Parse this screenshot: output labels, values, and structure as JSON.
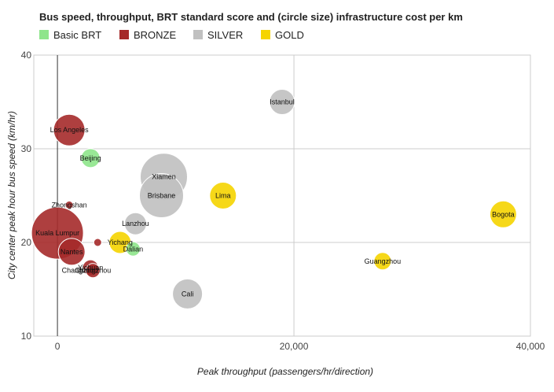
{
  "chart_data": {
    "type": "bubble",
    "title": "Bus speed, throughput, BRT standard score and (circle size) infrastructure cost per km",
    "xlabel": "Peak throughput (passengers/hr/direction)",
    "ylabel": "City center peak hour bus speed (km/hr)",
    "xlim": [
      -2000,
      40000
    ],
    "ylim": [
      10,
      40
    ],
    "x_ticks": [
      0,
      20000,
      40000
    ],
    "x_tick_labels": [
      "0",
      "20,000",
      "40,000"
    ],
    "y_ticks": [
      10,
      20,
      30,
      40
    ],
    "y_tick_labels": [
      "10",
      "20",
      "30",
      "40"
    ],
    "grid": true,
    "legend_position": "top-left",
    "categories": [
      {
        "name": "Basic BRT",
        "color": "#8ee58b"
      },
      {
        "name": "BRONZE",
        "color": "#a52a2a"
      },
      {
        "name": "SILVER",
        "color": "#c0c0c0"
      },
      {
        "name": "GOLD",
        "color": "#f5d400"
      }
    ],
    "points": [
      {
        "label": "Kuala Lumpur",
        "x": 0,
        "y": 21,
        "size": 33,
        "category": "BRONZE"
      },
      {
        "label": "Xiamen",
        "x": 9000,
        "y": 27,
        "size": 30,
        "category": "SILVER"
      },
      {
        "label": "Brisbane",
        "x": 8800,
        "y": 25,
        "size": 28,
        "category": "SILVER"
      },
      {
        "label": "Cali",
        "x": 11000,
        "y": 14.5,
        "size": 19,
        "category": "SILVER"
      },
      {
        "label": "Istanbul",
        "x": 19000,
        "y": 35,
        "size": 16,
        "category": "SILVER"
      },
      {
        "label": "Lanzhou",
        "x": 6600,
        "y": 22,
        "size": 14,
        "category": "SILVER"
      },
      {
        "label": "Changzhou",
        "x": 1900,
        "y": 17,
        "size": 5,
        "category": "SILVER"
      },
      {
        "label": "Los Angeles",
        "x": 1000,
        "y": 32,
        "size": 20,
        "category": "BRONZE"
      },
      {
        "label": "Nantes",
        "x": 1200,
        "y": 19,
        "size": 17,
        "category": "BRONZE"
      },
      {
        "label": "Zhongshan",
        "x": 1000,
        "y": 24,
        "size": 5,
        "category": "BRONZE"
      },
      {
        "label": "Yichuan",
        "x": 2800,
        "y": 17.3,
        "size": 10,
        "category": "BRONZE"
      },
      {
        "label": "Changzhou",
        "x": 3000,
        "y": 17,
        "size": 9,
        "category": "BRONZE"
      },
      {
        "label": "",
        "x": 3400,
        "y": 20,
        "size": 5,
        "category": "BRONZE"
      },
      {
        "label": "Beijing",
        "x": 2800,
        "y": 29,
        "size": 12,
        "category": "Basic BRT"
      },
      {
        "label": "Dalian",
        "x": 6400,
        "y": 19.3,
        "size": 9,
        "category": "Basic BRT"
      },
      {
        "label": "Bogota",
        "x": 37700,
        "y": 23,
        "size": 17,
        "category": "GOLD"
      },
      {
        "label": "Lima",
        "x": 14000,
        "y": 25,
        "size": 17,
        "category": "GOLD"
      },
      {
        "label": "Guangzhou",
        "x": 27500,
        "y": 18,
        "size": 11,
        "category": "GOLD"
      },
      {
        "label": "Yichang",
        "x": 5300,
        "y": 20,
        "size": 14,
        "category": "GOLD"
      }
    ]
  }
}
